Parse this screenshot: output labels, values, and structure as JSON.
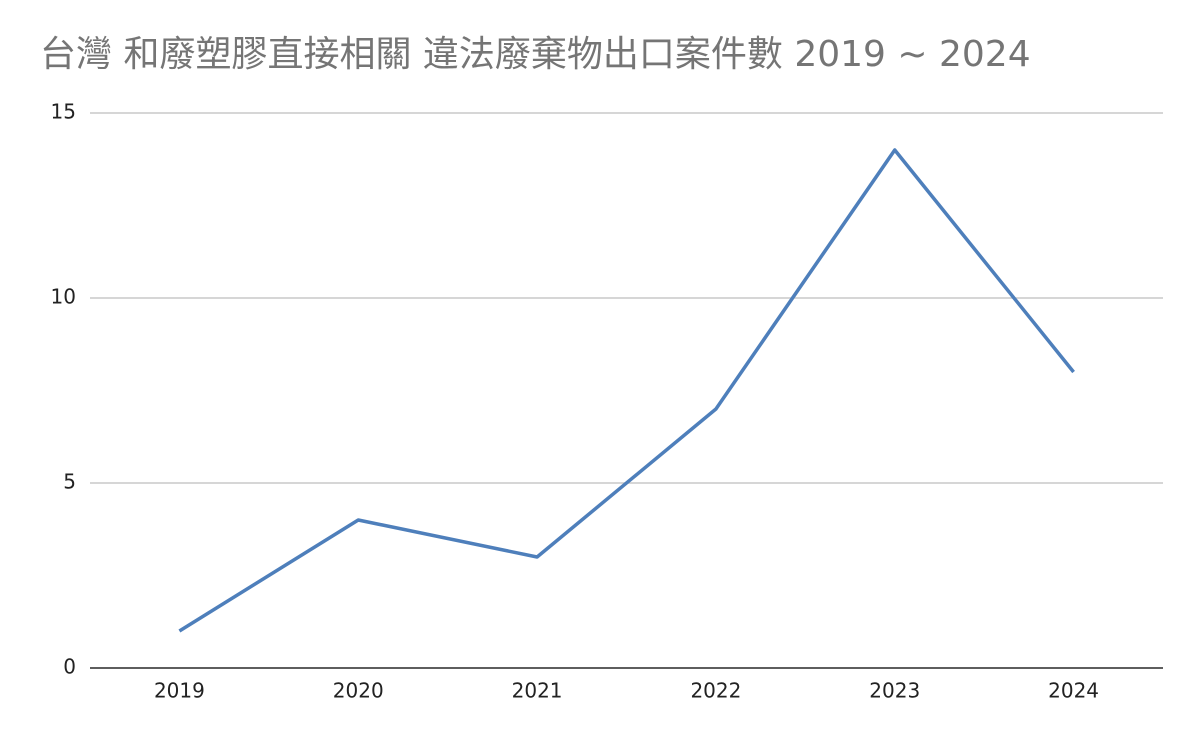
{
  "chart_data": {
    "type": "line",
    "title": "台灣 和廢塑膠直接相關 違法廢棄物出口案件數 2019 ~ 2024",
    "categories": [
      "2019",
      "2020",
      "2021",
      "2022",
      "2023",
      "2024"
    ],
    "values": [
      1,
      4,
      3,
      7,
      14,
      8
    ],
    "color": "#4e7fbb",
    "ylim": [
      0,
      15
    ],
    "yticks": [
      0,
      5,
      10,
      15
    ],
    "grid": true
  }
}
